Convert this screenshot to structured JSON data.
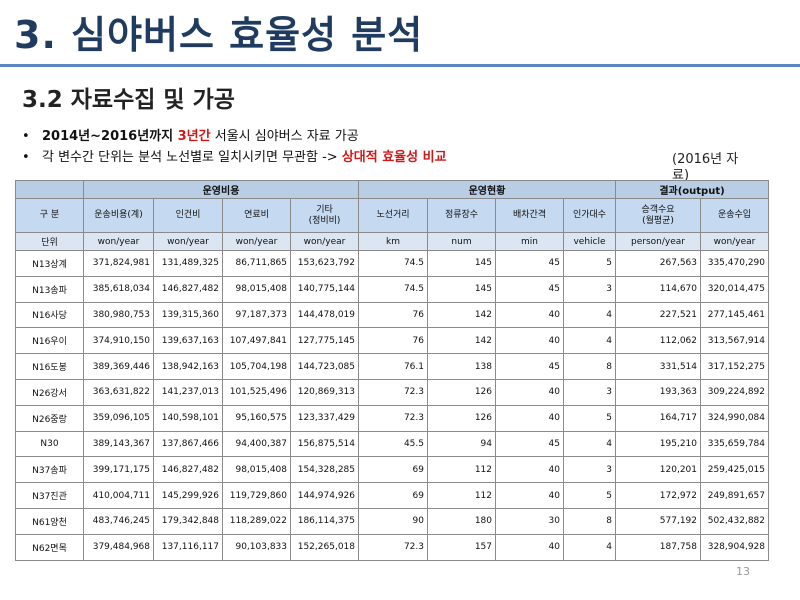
{
  "header": {
    "title": "3. 심야버스 효율성 분석",
    "subtitle": "3.2 자료수집 및 가공"
  },
  "bullets": [
    [
      "2014년~2016년까지 ",
      "3년간",
      " 서울시 심야버스 자료 가공"
    ],
    [
      "각 변수간 단위는 분석 노선별로 일치시키면 무관함 -> ",
      "상대적 효율성 비교"
    ]
  ],
  "note": "(2016년 자료)",
  "table": {
    "groups": [
      "운영비용",
      "운영현황",
      "결과(output)"
    ],
    "columns": [
      "구 분",
      "운송비용(계)",
      "인건비",
      "연료비",
      "기타\n(정비비)",
      "노선거리",
      "정류장수",
      "배차간격",
      "인가대수",
      "승객수요\n(월평균)",
      "운송수입"
    ],
    "units": [
      "단위",
      "won/year",
      "won/year",
      "won/year",
      "won/year",
      "km",
      "num",
      "min",
      "vehicle",
      "person/year",
      "won/year"
    ],
    "rows": [
      [
        "N13상계",
        "371,824,981",
        "131,489,325",
        "86,711,865",
        "153,623,792",
        "74.5",
        "145",
        "45",
        "5",
        "267,563",
        "335,470,290"
      ],
      [
        "N13송파",
        "385,618,034",
        "146,827,482",
        "98,015,408",
        "140,775,144",
        "74.5",
        "145",
        "45",
        "3",
        "114,670",
        "320,014,475"
      ],
      [
        "N16사당",
        "380,980,753",
        "139,315,360",
        "97,187,373",
        "144,478,019",
        "76",
        "142",
        "40",
        "4",
        "227,521",
        "277,145,461"
      ],
      [
        "N16우이",
        "374,910,150",
        "139,637,163",
        "107,497,841",
        "127,775,145",
        "76",
        "142",
        "40",
        "4",
        "112,062",
        "313,567,914"
      ],
      [
        "N16도봉",
        "389,369,446",
        "138,942,163",
        "105,704,198",
        "144,723,085",
        "76.1",
        "138",
        "45",
        "8",
        "331,514",
        "317,152,275"
      ],
      [
        "N26강서",
        "363,631,822",
        "141,237,013",
        "101,525,496",
        "120,869,313",
        "72.3",
        "126",
        "40",
        "3",
        "193,363",
        "309,224,892"
      ],
      [
        "N26중랑",
        "359,096,105",
        "140,598,101",
        "95,160,575",
        "123,337,429",
        "72.3",
        "126",
        "40",
        "5",
        "164,717",
        "324,990,084"
      ],
      [
        "N30",
        "389,143,367",
        "137,867,466",
        "94,400,387",
        "156,875,514",
        "45.5",
        "94",
        "45",
        "4",
        "195,210",
        "335,659,784"
      ],
      [
        "N37송파",
        "399,171,175",
        "146,827,482",
        "98,015,408",
        "154,328,285",
        "69",
        "112",
        "40",
        "3",
        "120,201",
        "259,425,015"
      ],
      [
        "N37진관",
        "410,004,711",
        "145,299,926",
        "119,729,860",
        "144,974,926",
        "69",
        "112",
        "40",
        "5",
        "172,972",
        "249,891,657"
      ],
      [
        "N61양천",
        "483,746,245",
        "179,342,848",
        "118,289,022",
        "186,114,375",
        "90",
        "180",
        "30",
        "8",
        "577,192",
        "502,432,882"
      ],
      [
        "N62면목",
        "379,484,968",
        "137,116,117",
        "90,103,833",
        "152,265,018",
        "72.3",
        "157",
        "40",
        "4",
        "187,758",
        "328,904,928"
      ]
    ]
  },
  "page_number": "13"
}
